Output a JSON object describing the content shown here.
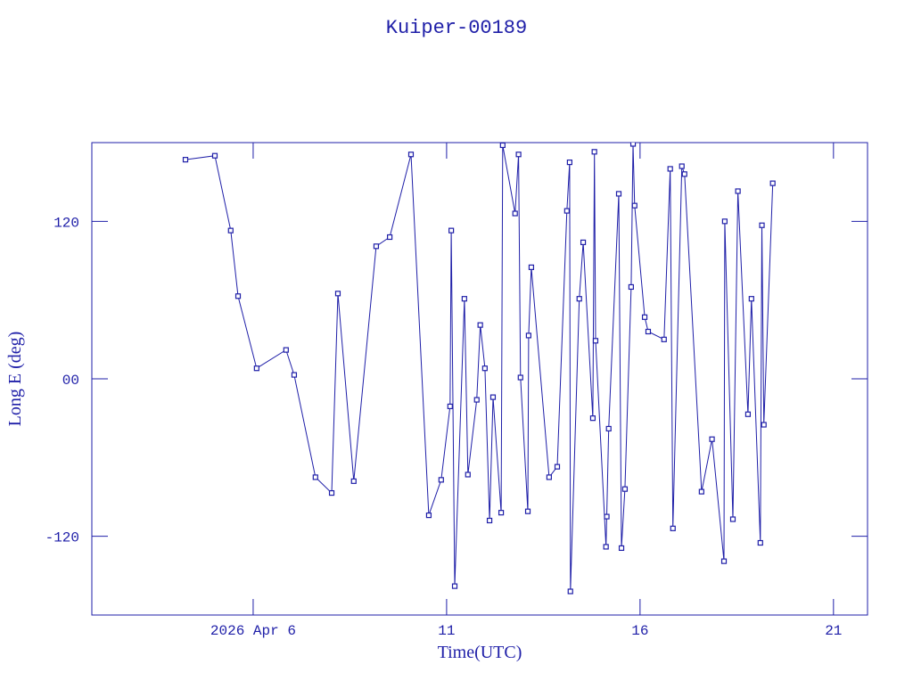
{
  "chart_data": {
    "type": "line",
    "title": "Kuiper-00189",
    "x_label": "Time(UTC)",
    "y_label": "Long E (deg)",
    "color": "#1f1fa8",
    "markers": true,
    "x": [
      4.25,
      5.01,
      5.42,
      5.61,
      6.09,
      6.85,
      7.06,
      7.61,
      8.03,
      8.19,
      8.6,
      9.18,
      9.53,
      10.08,
      10.54,
      10.86,
      11.09,
      11.12,
      11.21,
      11.46,
      11.55,
      11.78,
      11.87,
      11.99,
      12.11,
      12.2,
      12.41,
      12.45,
      12.77,
      12.86,
      12.91,
      13.1,
      13.12,
      13.19,
      13.65,
      13.86,
      14.11,
      14.18,
      14.2,
      14.43,
      14.53,
      14.78,
      14.82,
      14.85,
      15.12,
      15.14,
      15.19,
      15.45,
      15.52,
      15.61,
      15.77,
      15.82,
      15.86,
      16.12,
      16.21,
      16.62,
      16.78,
      16.85,
      17.08,
      17.15,
      17.59,
      17.86,
      18.17,
      18.19,
      18.4,
      18.53,
      18.79,
      18.88,
      19.11,
      19.15,
      19.2,
      19.43
    ],
    "values": [
      167,
      170,
      113,
      63,
      8,
      22,
      3,
      -75,
      -87,
      65,
      -78,
      101,
      108,
      171,
      -104,
      -77,
      -21,
      113,
      -158,
      61,
      -73,
      -16,
      41,
      8,
      -108,
      -14,
      -102,
      178,
      126,
      171,
      1,
      -101,
      33,
      85,
      -75,
      -67,
      128,
      165,
      -162,
      61,
      104,
      -30,
      173,
      29,
      -128,
      -105,
      -38,
      141,
      -129,
      -84,
      70,
      179,
      132,
      47,
      36,
      30,
      160,
      -114,
      162,
      156,
      -86,
      -46,
      -139,
      120,
      -107,
      143,
      -27,
      61,
      -125,
      117,
      -35,
      149
    ],
    "xlim": [
      1.83,
      21.88
    ],
    "xticks": [
      {
        "value": 6,
        "label": "2026 Apr 6"
      },
      11,
      16,
      21
    ],
    "ylim": [
      -180,
      180
    ],
    "yticks": [
      -120,
      {
        "value": 0,
        "label": "00"
      },
      120
    ]
  }
}
